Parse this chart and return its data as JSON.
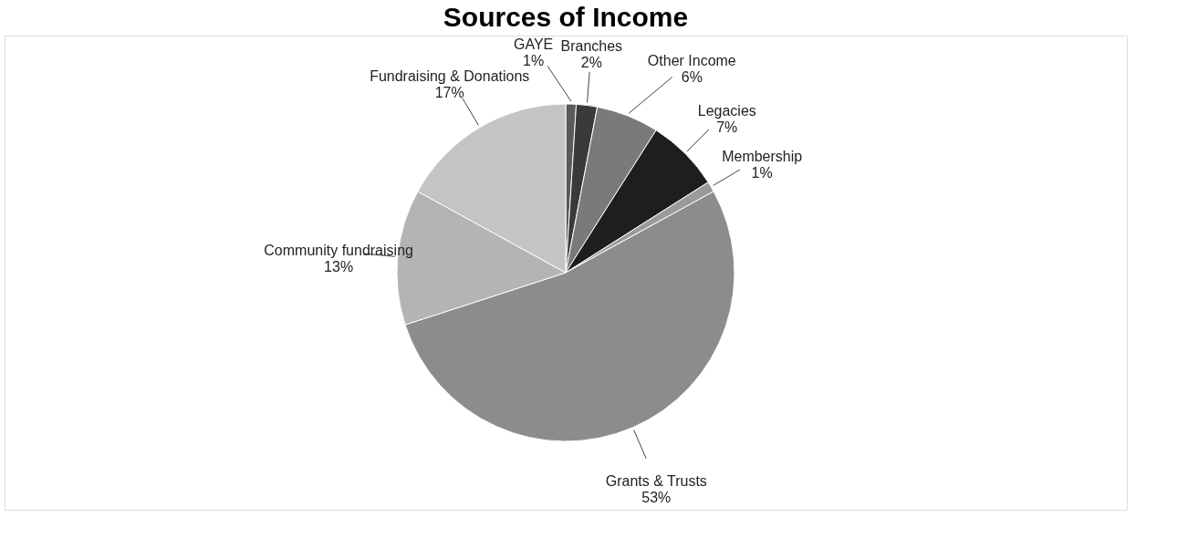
{
  "chart_data": {
    "type": "pie",
    "title": "Sources of Income",
    "categories": [
      "GAYE",
      "Branches",
      "Other Income",
      "Legacies",
      "Membership",
      "Grants & Trusts",
      "Community fundraising",
      "Fundraising & Donations"
    ],
    "values": [
      1,
      2,
      6,
      7,
      1,
      53,
      13,
      17
    ],
    "colors": [
      "#5a5a5a",
      "#3a3a3a",
      "#7a7a7a",
      "#1e1e1e",
      "#9a9a9a",
      "#8c8c8c",
      "#b4b4b4",
      "#c4c4c4"
    ],
    "value_labels": [
      "1%",
      "2%",
      "6%",
      "7%",
      "1%",
      "53%",
      "13%",
      "17%"
    ],
    "legend": false
  }
}
